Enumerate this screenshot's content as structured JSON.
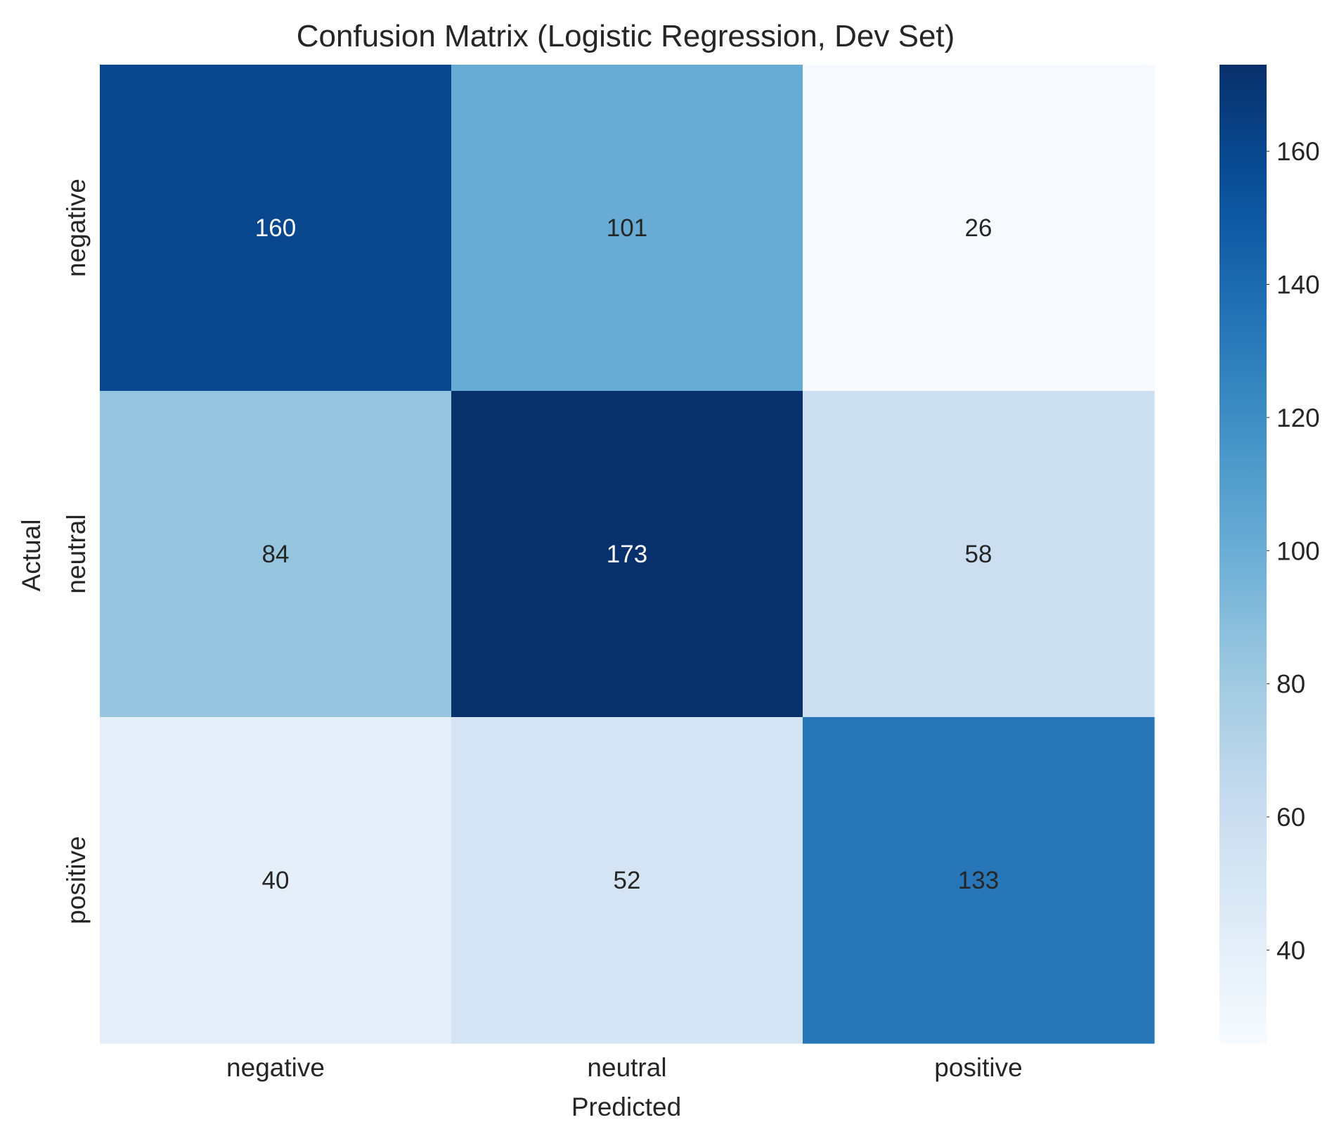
{
  "chart_data": {
    "type": "heatmap",
    "title": "Confusion Matrix (Logistic Regression, Dev Set)",
    "xlabel": "Predicted",
    "ylabel": "Actual",
    "x_categories": [
      "negative",
      "neutral",
      "positive"
    ],
    "y_categories": [
      "negative",
      "neutral",
      "positive"
    ],
    "values": [
      [
        160,
        101,
        26
      ],
      [
        84,
        173,
        58
      ],
      [
        40,
        52,
        133
      ]
    ],
    "colormap": "Blues",
    "color_range": [
      26,
      173
    ],
    "colorbar": {
      "ticks": [
        40,
        60,
        80,
        100,
        120,
        140,
        160
      ]
    },
    "grid": false
  }
}
